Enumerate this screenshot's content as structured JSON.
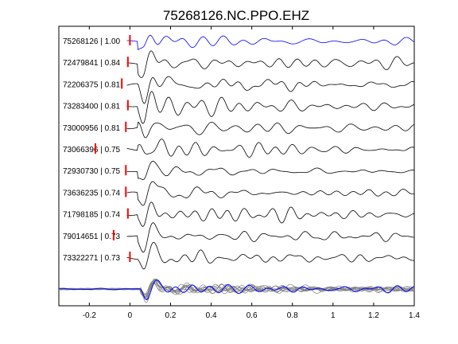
{
  "chart_data": {
    "type": "line",
    "title": "75268126.NC.PPO.EHZ",
    "xlabel": "",
    "ylabel": "",
    "xlim": [
      -0.35,
      1.4
    ],
    "xticks": [
      -0.2,
      0,
      0.2,
      0.4,
      0.6,
      0.8,
      1,
      1.2,
      1.4
    ],
    "xtick_labels": [
      "-0.2",
      "0",
      "0.2",
      "0.4",
      "0.6",
      "0.8",
      "1",
      "1.2",
      "1.4"
    ],
    "grid": false,
    "colors": {
      "reference": "#0000ff",
      "trace": "#000000",
      "pick": "#ff0000",
      "stack_gray": "#808080"
    },
    "series": [
      {
        "name": "75268126 | 1.00",
        "pick": 0.0,
        "reference": true
      },
      {
        "name": "72479841 | 0.84",
        "pick": -0.01
      },
      {
        "name": "72206375 | 0.81",
        "pick": -0.04
      },
      {
        "name": "73283400 | 0.81",
        "pick": -0.01
      },
      {
        "name": "73000956 | 0.81",
        "pick": -0.02
      },
      {
        "name": "73066396 | 0.75",
        "pick": -0.17
      },
      {
        "name": "72930730 | 0.75",
        "pick": -0.02
      },
      {
        "name": "73636235 | 0.74",
        "pick": -0.02
      },
      {
        "name": "71798185 | 0.74",
        "pick": -0.01
      },
      {
        "name": "79014651 | 0.73",
        "pick": -0.08
      },
      {
        "name": "73322271 | 0.73",
        "pick": 0.0
      }
    ],
    "stack": {
      "onset": 0.05,
      "duration": 0.35,
      "amplitude": 1.3
    }
  }
}
